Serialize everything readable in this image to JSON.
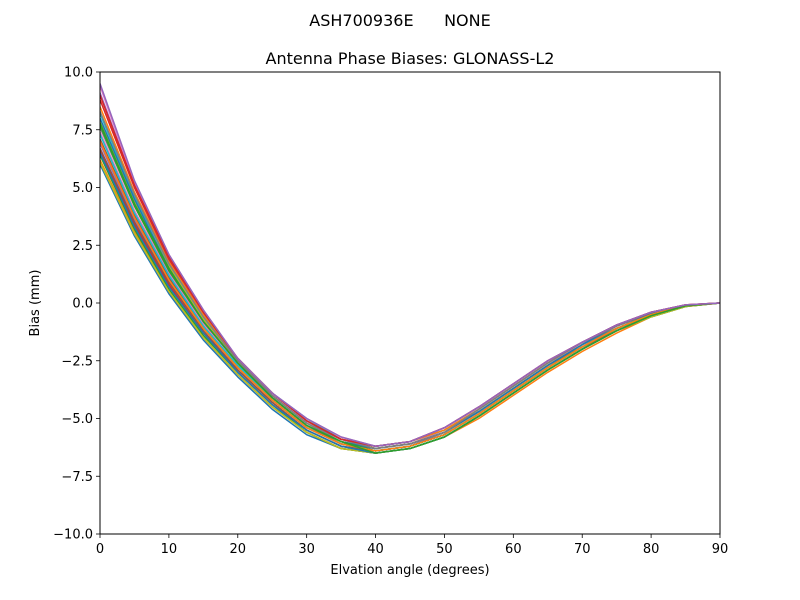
{
  "chart_data": {
    "type": "line",
    "suptitle": "ASH700936E      NONE",
    "title": "Antenna Phase Biases: GLONASS-L2",
    "xlabel": "Elvation angle (degrees)",
    "ylabel": "Bias (mm)",
    "xlim": [
      0,
      90
    ],
    "ylim": [
      -10,
      10
    ],
    "xticks": [
      0,
      10,
      20,
      30,
      40,
      50,
      60,
      70,
      80,
      90
    ],
    "yticks": [
      -10.0,
      -7.5,
      -5.0,
      -2.5,
      0.0,
      2.5,
      5.0,
      7.5,
      10.0
    ],
    "xtick_labels": [
      "0",
      "10",
      "20",
      "30",
      "40",
      "50",
      "60",
      "70",
      "80",
      "90"
    ],
    "ytick_labels": [
      "−10.0",
      "−7.5",
      "−5.0",
      "−2.5",
      "0.0",
      "2.5",
      "5.0",
      "7.5",
      "10.0"
    ],
    "grid": false,
    "x": [
      0,
      5,
      10,
      15,
      20,
      25,
      30,
      35,
      40,
      45,
      50,
      55,
      60,
      65,
      70,
      75,
      80,
      85,
      90
    ],
    "series": [
      {
        "color": "#1f77b4",
        "values": [
          6.0,
          2.9,
          0.4,
          -1.6,
          -3.2,
          -4.6,
          -5.7,
          -6.3,
          -6.5,
          -6.3,
          -5.8,
          -4.9,
          -3.9,
          -2.9,
          -2.0,
          -1.2,
          -0.6,
          -0.15,
          0.0
        ]
      },
      {
        "color": "#ff7f0e",
        "values": [
          6.2,
          3.1,
          0.5,
          -1.5,
          -3.1,
          -4.5,
          -5.6,
          -6.3,
          -6.5,
          -6.3,
          -5.8,
          -5.0,
          -4.0,
          -3.0,
          -2.1,
          -1.3,
          -0.6,
          -0.15,
          0.0
        ]
      },
      {
        "color": "#2ca02c",
        "values": [
          6.4,
          3.2,
          0.6,
          -1.4,
          -3.0,
          -4.4,
          -5.6,
          -6.3,
          -6.5,
          -6.3,
          -5.8,
          -4.9,
          -3.9,
          -2.9,
          -2.0,
          -1.2,
          -0.6,
          -0.15,
          0.0
        ]
      },
      {
        "color": "#d62728",
        "values": [
          6.6,
          3.4,
          0.8,
          -1.3,
          -2.9,
          -4.3,
          -5.5,
          -6.2,
          -6.4,
          -6.2,
          -5.7,
          -4.8,
          -3.8,
          -2.8,
          -1.9,
          -1.2,
          -0.55,
          -0.12,
          0.0
        ]
      },
      {
        "color": "#9467bd",
        "values": [
          6.9,
          3.6,
          1.0,
          -1.1,
          -2.8,
          -4.2,
          -5.4,
          -6.1,
          -6.4,
          -6.2,
          -5.6,
          -4.7,
          -3.7,
          -2.7,
          -1.8,
          -1.1,
          -0.5,
          -0.1,
          0.0
        ]
      },
      {
        "color": "#8c564b",
        "values": [
          7.1,
          3.8,
          1.1,
          -1.0,
          -2.7,
          -4.1,
          -5.3,
          -6.1,
          -6.3,
          -6.1,
          -5.6,
          -4.7,
          -3.7,
          -2.7,
          -1.9,
          -1.1,
          -0.5,
          -0.1,
          0.0
        ]
      },
      {
        "color": "#e377c2",
        "values": [
          7.4,
          4.0,
          1.3,
          -0.9,
          -2.6,
          -4.0,
          -5.2,
          -6.0,
          -6.3,
          -6.1,
          -5.5,
          -4.6,
          -3.6,
          -2.6,
          -1.8,
          -1.0,
          -0.45,
          -0.1,
          0.0
        ]
      },
      {
        "color": "#7f7f7f",
        "values": [
          7.6,
          4.2,
          1.4,
          -0.8,
          -2.6,
          -4.0,
          -5.2,
          -6.0,
          -6.3,
          -6.1,
          -5.6,
          -4.7,
          -3.7,
          -2.7,
          -1.8,
          -1.1,
          -0.5,
          -0.1,
          0.0
        ]
      },
      {
        "color": "#bcbd22",
        "values": [
          7.9,
          4.4,
          1.6,
          -0.7,
          -2.5,
          -3.9,
          -5.1,
          -5.9,
          -6.3,
          -6.1,
          -5.6,
          -4.7,
          -3.7,
          -2.7,
          -1.8,
          -1.0,
          -0.45,
          -0.1,
          0.0
        ]
      },
      {
        "color": "#17becf",
        "values": [
          8.2,
          4.6,
          1.7,
          -0.6,
          -2.4,
          -3.9,
          -5.0,
          -5.9,
          -6.2,
          -6.0,
          -5.5,
          -4.6,
          -3.6,
          -2.6,
          -1.7,
          -1.0,
          -0.4,
          -0.1,
          0.0
        ]
      },
      {
        "color": "#1f77b4",
        "values": [
          8.0,
          4.5,
          1.5,
          -0.8,
          -2.6,
          -4.1,
          -5.3,
          -6.0,
          -6.3,
          -6.1,
          -5.6,
          -4.7,
          -3.7,
          -2.7,
          -1.8,
          -1.0,
          -0.45,
          -0.1,
          0.0
        ]
      },
      {
        "color": "#ff7f0e",
        "values": [
          8.5,
          4.8,
          1.8,
          -0.5,
          -2.4,
          -3.9,
          -5.1,
          -5.9,
          -6.2,
          -6.0,
          -5.5,
          -4.6,
          -3.6,
          -2.6,
          -1.7,
          -1.0,
          -0.4,
          -0.1,
          0.0
        ]
      },
      {
        "color": "#2ca02c",
        "values": [
          7.8,
          4.3,
          1.5,
          -0.8,
          -2.6,
          -4.1,
          -5.3,
          -6.0,
          -6.4,
          -6.2,
          -5.7,
          -4.8,
          -3.8,
          -2.8,
          -1.9,
          -1.1,
          -0.5,
          -0.12,
          0.0
        ]
      },
      {
        "color": "#d62728",
        "values": [
          8.8,
          5.0,
          1.9,
          -0.4,
          -2.4,
          -3.9,
          -5.1,
          -5.9,
          -6.2,
          -6.0,
          -5.4,
          -4.5,
          -3.5,
          -2.5,
          -1.7,
          -0.95,
          -0.4,
          -0.08,
          0.0
        ]
      },
      {
        "color": "#9467bd",
        "values": [
          9.1,
          5.1,
          2.0,
          -0.4,
          -2.4,
          -3.9,
          -5.1,
          -5.9,
          -6.2,
          -6.0,
          -5.4,
          -4.5,
          -3.5,
          -2.5,
          -1.7,
          -0.95,
          -0.4,
          -0.08,
          0.0
        ]
      },
      {
        "color": "#8c564b",
        "values": [
          6.7,
          3.5,
          0.9,
          -1.2,
          -2.9,
          -4.3,
          -5.5,
          -6.2,
          -6.4,
          -6.2,
          -5.7,
          -4.8,
          -3.8,
          -2.8,
          -1.9,
          -1.1,
          -0.5,
          -0.1,
          0.0
        ]
      },
      {
        "color": "#e377c2",
        "values": [
          9.4,
          5.2,
          2.1,
          -0.3,
          -2.4,
          -3.9,
          -5.0,
          -5.8,
          -6.2,
          -6.0,
          -5.4,
          -4.5,
          -3.5,
          -2.5,
          -1.7,
          -0.95,
          -0.4,
          -0.08,
          0.0
        ]
      },
      {
        "color": "#7f7f7f",
        "values": [
          8.3,
          4.7,
          1.7,
          -0.6,
          -2.5,
          -4.0,
          -5.2,
          -5.9,
          -6.3,
          -6.1,
          -5.6,
          -4.6,
          -3.6,
          -2.6,
          -1.7,
          -1.0,
          -0.4,
          -0.1,
          0.0
        ]
      },
      {
        "color": "#bcbd22",
        "values": [
          6.1,
          3.0,
          0.5,
          -1.5,
          -3.1,
          -4.5,
          -5.6,
          -6.3,
          -6.5,
          -6.3,
          -5.8,
          -4.9,
          -3.9,
          -2.9,
          -2.0,
          -1.2,
          -0.6,
          -0.15,
          0.0
        ]
      },
      {
        "color": "#17becf",
        "values": [
          7.3,
          3.9,
          1.2,
          -1.0,
          -2.7,
          -4.2,
          -5.4,
          -6.1,
          -6.4,
          -6.2,
          -5.7,
          -4.8,
          -3.8,
          -2.8,
          -1.9,
          -1.1,
          -0.5,
          -0.1,
          0.0
        ]
      },
      {
        "color": "#1f77b4",
        "values": [
          6.5,
          3.3,
          0.7,
          -1.3,
          -3.0,
          -4.4,
          -5.5,
          -6.2,
          -6.5,
          -6.3,
          -5.8,
          -4.9,
          -3.9,
          -2.9,
          -2.0,
          -1.2,
          -0.55,
          -0.12,
          0.0
        ]
      },
      {
        "color": "#ff7f0e",
        "values": [
          7.0,
          3.7,
          1.0,
          -1.1,
          -2.8,
          -4.2,
          -5.4,
          -6.1,
          -6.4,
          -6.2,
          -5.7,
          -4.8,
          -3.8,
          -2.8,
          -1.9,
          -1.1,
          -0.5,
          -0.1,
          0.0
        ]
      },
      {
        "color": "#2ca02c",
        "values": [
          7.7,
          4.2,
          1.4,
          -0.8,
          -2.6,
          -4.1,
          -5.3,
          -6.0,
          -6.5,
          -6.3,
          -5.8,
          -4.9,
          -3.9,
          -2.9,
          -2.0,
          -1.2,
          -0.55,
          -0.12,
          0.0
        ]
      },
      {
        "color": "#d62728",
        "values": [
          9.0,
          5.1,
          2.0,
          -0.4,
          -2.4,
          -3.9,
          -5.1,
          -5.9,
          -6.2,
          -6.0,
          -5.4,
          -4.5,
          -3.5,
          -2.5,
          -1.7,
          -0.95,
          -0.4,
          -0.08,
          0.0
        ]
      },
      {
        "color": "#9467bd",
        "values": [
          9.5,
          5.3,
          2.1,
          -0.3,
          -2.4,
          -3.9,
          -5.0,
          -5.8,
          -6.2,
          -6.0,
          -5.4,
          -4.5,
          -3.5,
          -2.5,
          -1.7,
          -0.95,
          -0.4,
          -0.08,
          0.0
        ]
      }
    ]
  }
}
